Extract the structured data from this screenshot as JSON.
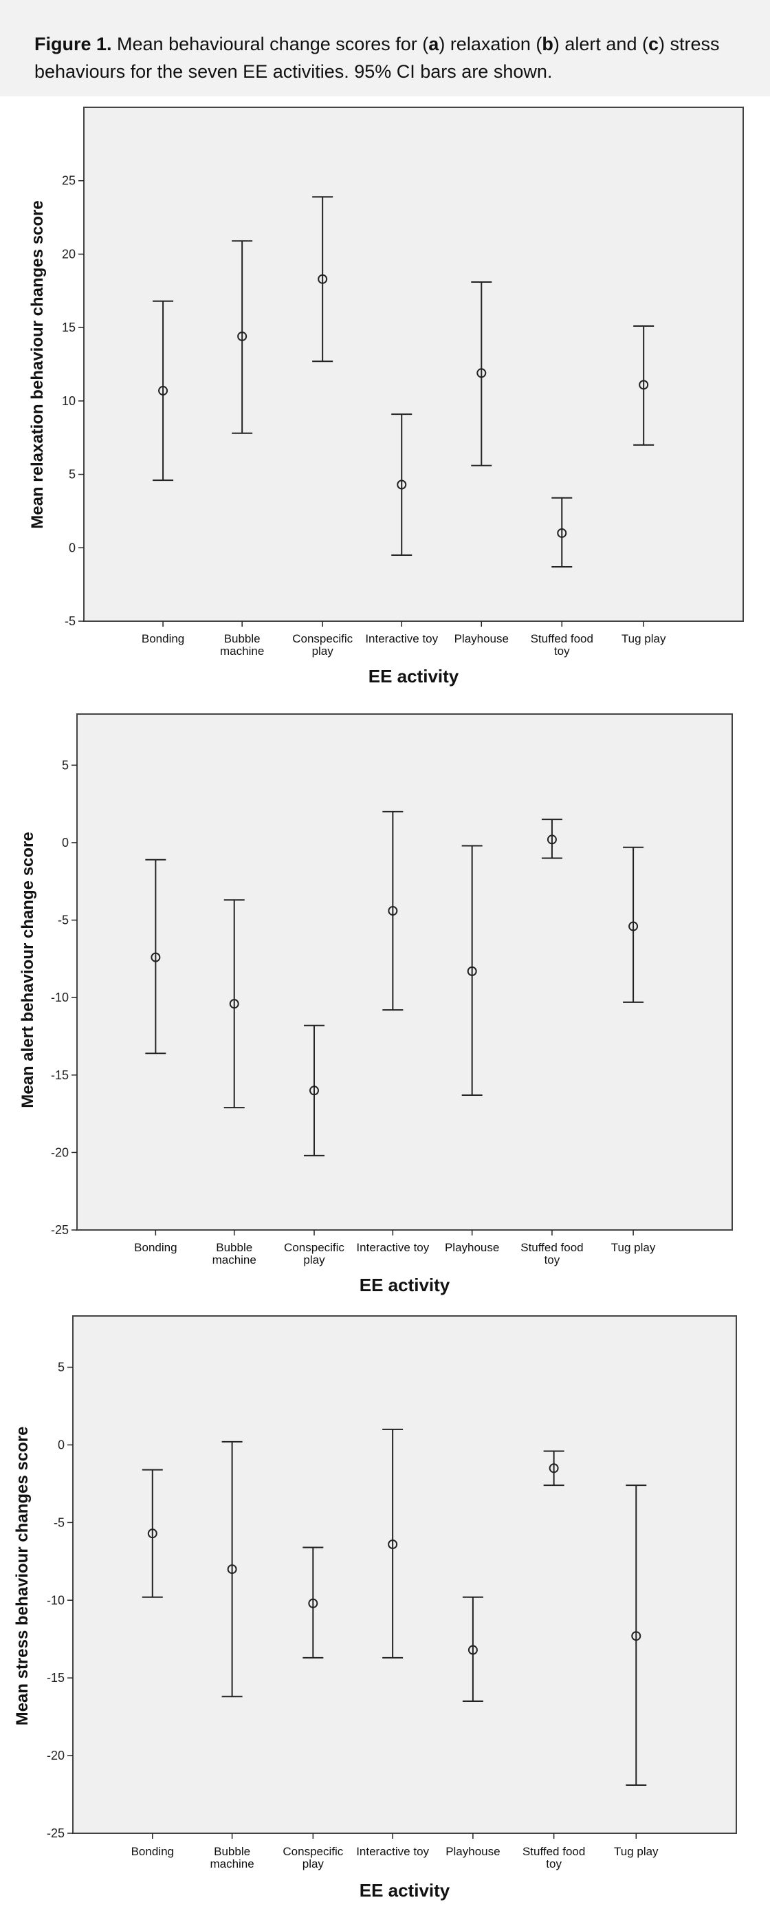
{
  "caption": {
    "label": "Figure 1.",
    "parts": [
      " Mean behavioural change scores for (",
      "a",
      ") relaxation (",
      "b",
      ") alert and (",
      "c",
      ") stress behaviours for the seven EE activities. 95% CI bars are shown."
    ]
  },
  "chart_data": [
    {
      "type": "scatter",
      "panel": "a",
      "categories": [
        "Bonding",
        "Bubble machine",
        "Conspecific play",
        "Interactive toy",
        "Playhouse",
        "Stuffed food toy",
        "Tug play"
      ],
      "category_lines": [
        [
          "Bonding"
        ],
        [
          "Bubble",
          "machine"
        ],
        [
          "Conspecific",
          "play"
        ],
        [
          "Interactive toy"
        ],
        [
          "Playhouse"
        ],
        [
          "Stuffed food",
          "toy"
        ],
        [
          "Tug play"
        ]
      ],
      "series": [
        {
          "values": [
            10.7,
            14.4,
            18.3,
            4.3,
            11.9,
            1.0,
            11.1
          ],
          "ci_lower": [
            4.6,
            7.8,
            12.7,
            -0.5,
            5.6,
            -1.3,
            7.0
          ],
          "ci_upper": [
            16.8,
            20.9,
            23.9,
            9.1,
            18.1,
            3.4,
            15.1
          ]
        }
      ],
      "ylabel": "Mean relaxation behaviour changes score",
      "xlabel": "EE activity",
      "ylim": [
        -5,
        30
      ],
      "yticks": [
        -5,
        0,
        5,
        10,
        15,
        20,
        25
      ],
      "grid": false
    },
    {
      "type": "scatter",
      "panel": "b",
      "categories": [
        "Bonding",
        "Bubble machine",
        "Conspecific play",
        "Interactive toy",
        "Playhouse",
        "Stuffed food toy",
        "Tug play"
      ],
      "category_lines": [
        [
          "Bonding"
        ],
        [
          "Bubble",
          "machine"
        ],
        [
          "Conspecific",
          "play"
        ],
        [
          "Interactive toy"
        ],
        [
          "Playhouse"
        ],
        [
          "Stuffed food",
          "toy"
        ],
        [
          "Tug play"
        ]
      ],
      "series": [
        {
          "values": [
            -7.4,
            -10.4,
            -16.0,
            -4.4,
            -8.3,
            0.2,
            -5.4
          ],
          "ci_lower": [
            -13.6,
            -17.1,
            -20.2,
            -10.8,
            -16.3,
            -1.0,
            -10.3
          ],
          "ci_upper": [
            -1.1,
            -3.7,
            -11.8,
            2.0,
            -0.2,
            1.5,
            -0.3
          ]
        }
      ],
      "ylabel": "Mean alert behaviour change score",
      "xlabel": "EE activity",
      "ylim": [
        -25,
        8.3
      ],
      "yticks": [
        -25,
        -20,
        -15,
        -10,
        -5,
        0,
        5
      ],
      "grid": false
    },
    {
      "type": "scatter",
      "panel": "c",
      "categories": [
        "Bonding",
        "Bubble machine",
        "Conspecific play",
        "Interactive toy",
        "Playhouse",
        "Stuffed food toy",
        "Tug play"
      ],
      "category_lines": [
        [
          "Bonding"
        ],
        [
          "Bubble",
          "machine"
        ],
        [
          "Conspecific",
          "play"
        ],
        [
          "Interactive toy"
        ],
        [
          "Playhouse"
        ],
        [
          "Stuffed food",
          "toy"
        ],
        [
          "Tug play"
        ]
      ],
      "series": [
        {
          "values": [
            -5.7,
            -8.0,
            -10.2,
            -6.4,
            -13.2,
            -1.5,
            -12.3
          ],
          "ci_lower": [
            -9.8,
            -16.2,
            -13.7,
            -13.7,
            -16.5,
            -2.6,
            -21.9
          ],
          "ci_upper": [
            -1.6,
            0.2,
            -6.6,
            1.0,
            -9.8,
            -0.4,
            -2.6
          ]
        }
      ],
      "ylabel": "Mean stress behaviour changes score",
      "xlabel": "EE activity",
      "ylim": [
        -25,
        8.3
      ],
      "yticks": [
        -25,
        -20,
        -15,
        -10,
        -5,
        0,
        5
      ],
      "grid": false
    }
  ]
}
